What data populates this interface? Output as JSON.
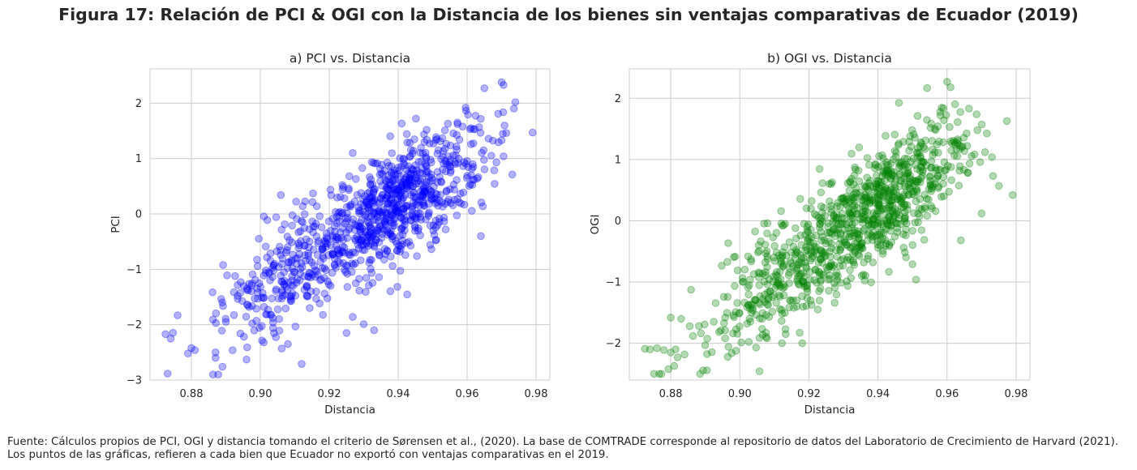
{
  "figure_title": "Figura 17: Relación de PCI & OGI con la Distancia de los bienes sin ventajas comparativas de Ecuador (2019)",
  "caption": "Fuente: Cálculos propios de PCI, OGI y distancia tomando el criterio de Sørensen et al., (2020). La base de COMTRADE corresponde al repositorio de datos del Laboratorio de Crecimiento de Harvard (2021). Los puntos de las gráficas, refieren a cada bien que Ecuador no exportó con ventajas comparativas en el 2019.",
  "chart_data": [
    {
      "type": "scatter",
      "title": "a) PCI vs. Distancia",
      "xlabel": "Distancia",
      "ylabel": "PCI",
      "xlim": [
        0.868,
        0.984
      ],
      "ylim": [
        -3.0,
        2.62
      ],
      "xticks": [
        0.88,
        0.9,
        0.92,
        0.94,
        0.96,
        0.98
      ],
      "xtick_labels": [
        "0.88",
        "0.90",
        "0.92",
        "0.94",
        "0.96",
        "0.98"
      ],
      "yticks": [
        -3,
        -2,
        -1,
        0,
        1,
        2
      ],
      "ytick_labels": [
        "−3",
        "−2",
        "−1",
        "0",
        "1",
        "2"
      ],
      "grid": true,
      "color": "#0000ff",
      "alpha": 0.3,
      "point_count": 1000,
      "relationship": {
        "slope": 38.5,
        "center_x": 0.9335,
        "intercept_at_center": -0.05,
        "residual_sd": 0.52
      },
      "x_distribution": {
        "min": 0.872,
        "max": 0.979,
        "modes": [
          [
            0.94,
            0.013,
            0.7
          ],
          [
            0.91,
            0.012,
            0.3
          ]
        ]
      },
      "notable_points": [
        {
          "x": 0.8725,
          "y": -2.17
        },
        {
          "x": 0.874,
          "y": -2.25
        },
        {
          "x": 0.876,
          "y": -1.83
        },
        {
          "x": 0.879,
          "y": -2.52
        },
        {
          "x": 0.88,
          "y": -2.42
        },
        {
          "x": 0.881,
          "y": -2.46
        },
        {
          "x": 0.887,
          "y": -2.5
        },
        {
          "x": 0.887,
          "y": -2.6
        },
        {
          "x": 0.889,
          "y": -2.76
        },
        {
          "x": 0.896,
          "y": -2.63
        },
        {
          "x": 0.912,
          "y": -2.71
        },
        {
          "x": 0.979,
          "y": 1.47
        },
        {
          "x": 0.974,
          "y": 2.02
        },
        {
          "x": 0.97,
          "y": 2.38
        },
        {
          "x": 0.965,
          "y": 2.27
        },
        {
          "x": 0.97,
          "y": 1.33
        },
        {
          "x": 0.964,
          "y": -0.4
        },
        {
          "x": 0.933,
          "y": -2.1
        },
        {
          "x": 0.93,
          "y": -1.99
        },
        {
          "x": 0.925,
          "y": -2.15
        },
        {
          "x": 0.908,
          "y": -2.35
        }
      ]
    },
    {
      "type": "scatter",
      "title": "b) OGI vs. Distancia",
      "xlabel": "Distancia",
      "ylabel": "OGI",
      "xlim": [
        0.868,
        0.984
      ],
      "ylim": [
        -2.6,
        2.48
      ],
      "xticks": [
        0.88,
        0.9,
        0.92,
        0.94,
        0.96,
        0.98
      ],
      "xtick_labels": [
        "0.88",
        "0.90",
        "0.92",
        "0.94",
        "0.96",
        "0.98"
      ],
      "yticks": [
        -2,
        -1,
        0,
        1,
        2
      ],
      "ytick_labels": [
        "−2",
        "−1",
        "0",
        "1",
        "2"
      ],
      "grid": true,
      "color": "#008000",
      "alpha": 0.3,
      "point_count": 1000,
      "relationship": {
        "slope": 40.0,
        "center_x": 0.9335,
        "intercept_at_center": -0.05,
        "residual_sd": 0.46
      },
      "x_distribution": {
        "min": 0.872,
        "max": 0.979,
        "modes": [
          [
            0.94,
            0.013,
            0.7
          ],
          [
            0.91,
            0.012,
            0.3
          ]
        ]
      },
      "notable_points": [
        {
          "x": 0.8725,
          "y": -2.09
        },
        {
          "x": 0.874,
          "y": -2.1
        },
        {
          "x": 0.876,
          "y": -2.08
        },
        {
          "x": 0.878,
          "y": -2.11
        },
        {
          "x": 0.88,
          "y": -2.15
        },
        {
          "x": 0.88,
          "y": -1.58
        },
        {
          "x": 0.881,
          "y": -2.37
        },
        {
          "x": 0.882,
          "y": -2.23
        },
        {
          "x": 0.883,
          "y": -1.6
        },
        {
          "x": 0.884,
          "y": -2.18
        },
        {
          "x": 0.979,
          "y": 0.42
        },
        {
          "x": 0.975,
          "y": 0.57
        },
        {
          "x": 0.973,
          "y": 1.04
        },
        {
          "x": 0.971,
          "y": 1.12
        },
        {
          "x": 0.97,
          "y": 0.12
        },
        {
          "x": 0.96,
          "y": 2.27
        },
        {
          "x": 0.961,
          "y": 2.18
        },
        {
          "x": 0.964,
          "y": -0.32
        },
        {
          "x": 0.951,
          "y": -0.96
        },
        {
          "x": 0.95,
          "y": -0.71
        }
      ]
    }
  ]
}
